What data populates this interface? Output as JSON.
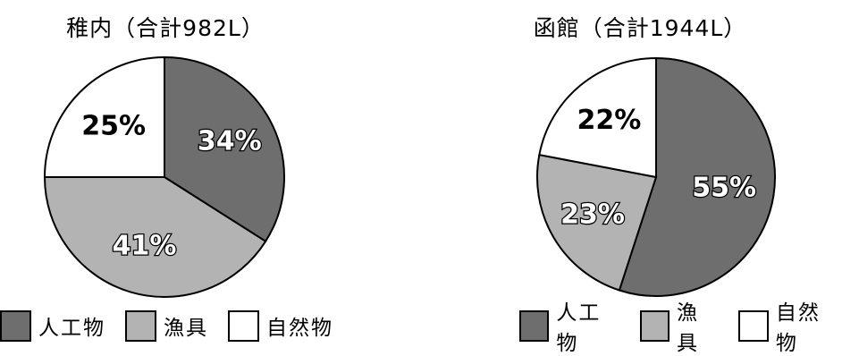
{
  "chart_data": [
    {
      "type": "pie",
      "title": "稚内（合計982L）",
      "slices": [
        {
          "label": "人工物",
          "value": 34,
          "text": "34%",
          "color": "#6e6e6e"
        },
        {
          "label": "漁具",
          "value": 41,
          "text": "41%",
          "color": "#b3b3b3"
        },
        {
          "label": "自然物",
          "value": 25,
          "text": "25%",
          "color": "#ffffff"
        }
      ],
      "legend": [
        "人工物",
        "漁具",
        "自然物"
      ],
      "legend_position": "bottom"
    },
    {
      "type": "pie",
      "title": "函館（合計1944L）",
      "slices": [
        {
          "label": "人工物",
          "value": 55,
          "text": "55%",
          "color": "#6e6e6e"
        },
        {
          "label": "漁具",
          "value": 23,
          "text": "23%",
          "color": "#b3b3b3"
        },
        {
          "label": "自然物",
          "value": 22,
          "text": "22%",
          "color": "#ffffff"
        }
      ],
      "legend": [
        "人工物",
        "漁具",
        "自然物"
      ],
      "legend_position": "bottom"
    }
  ]
}
